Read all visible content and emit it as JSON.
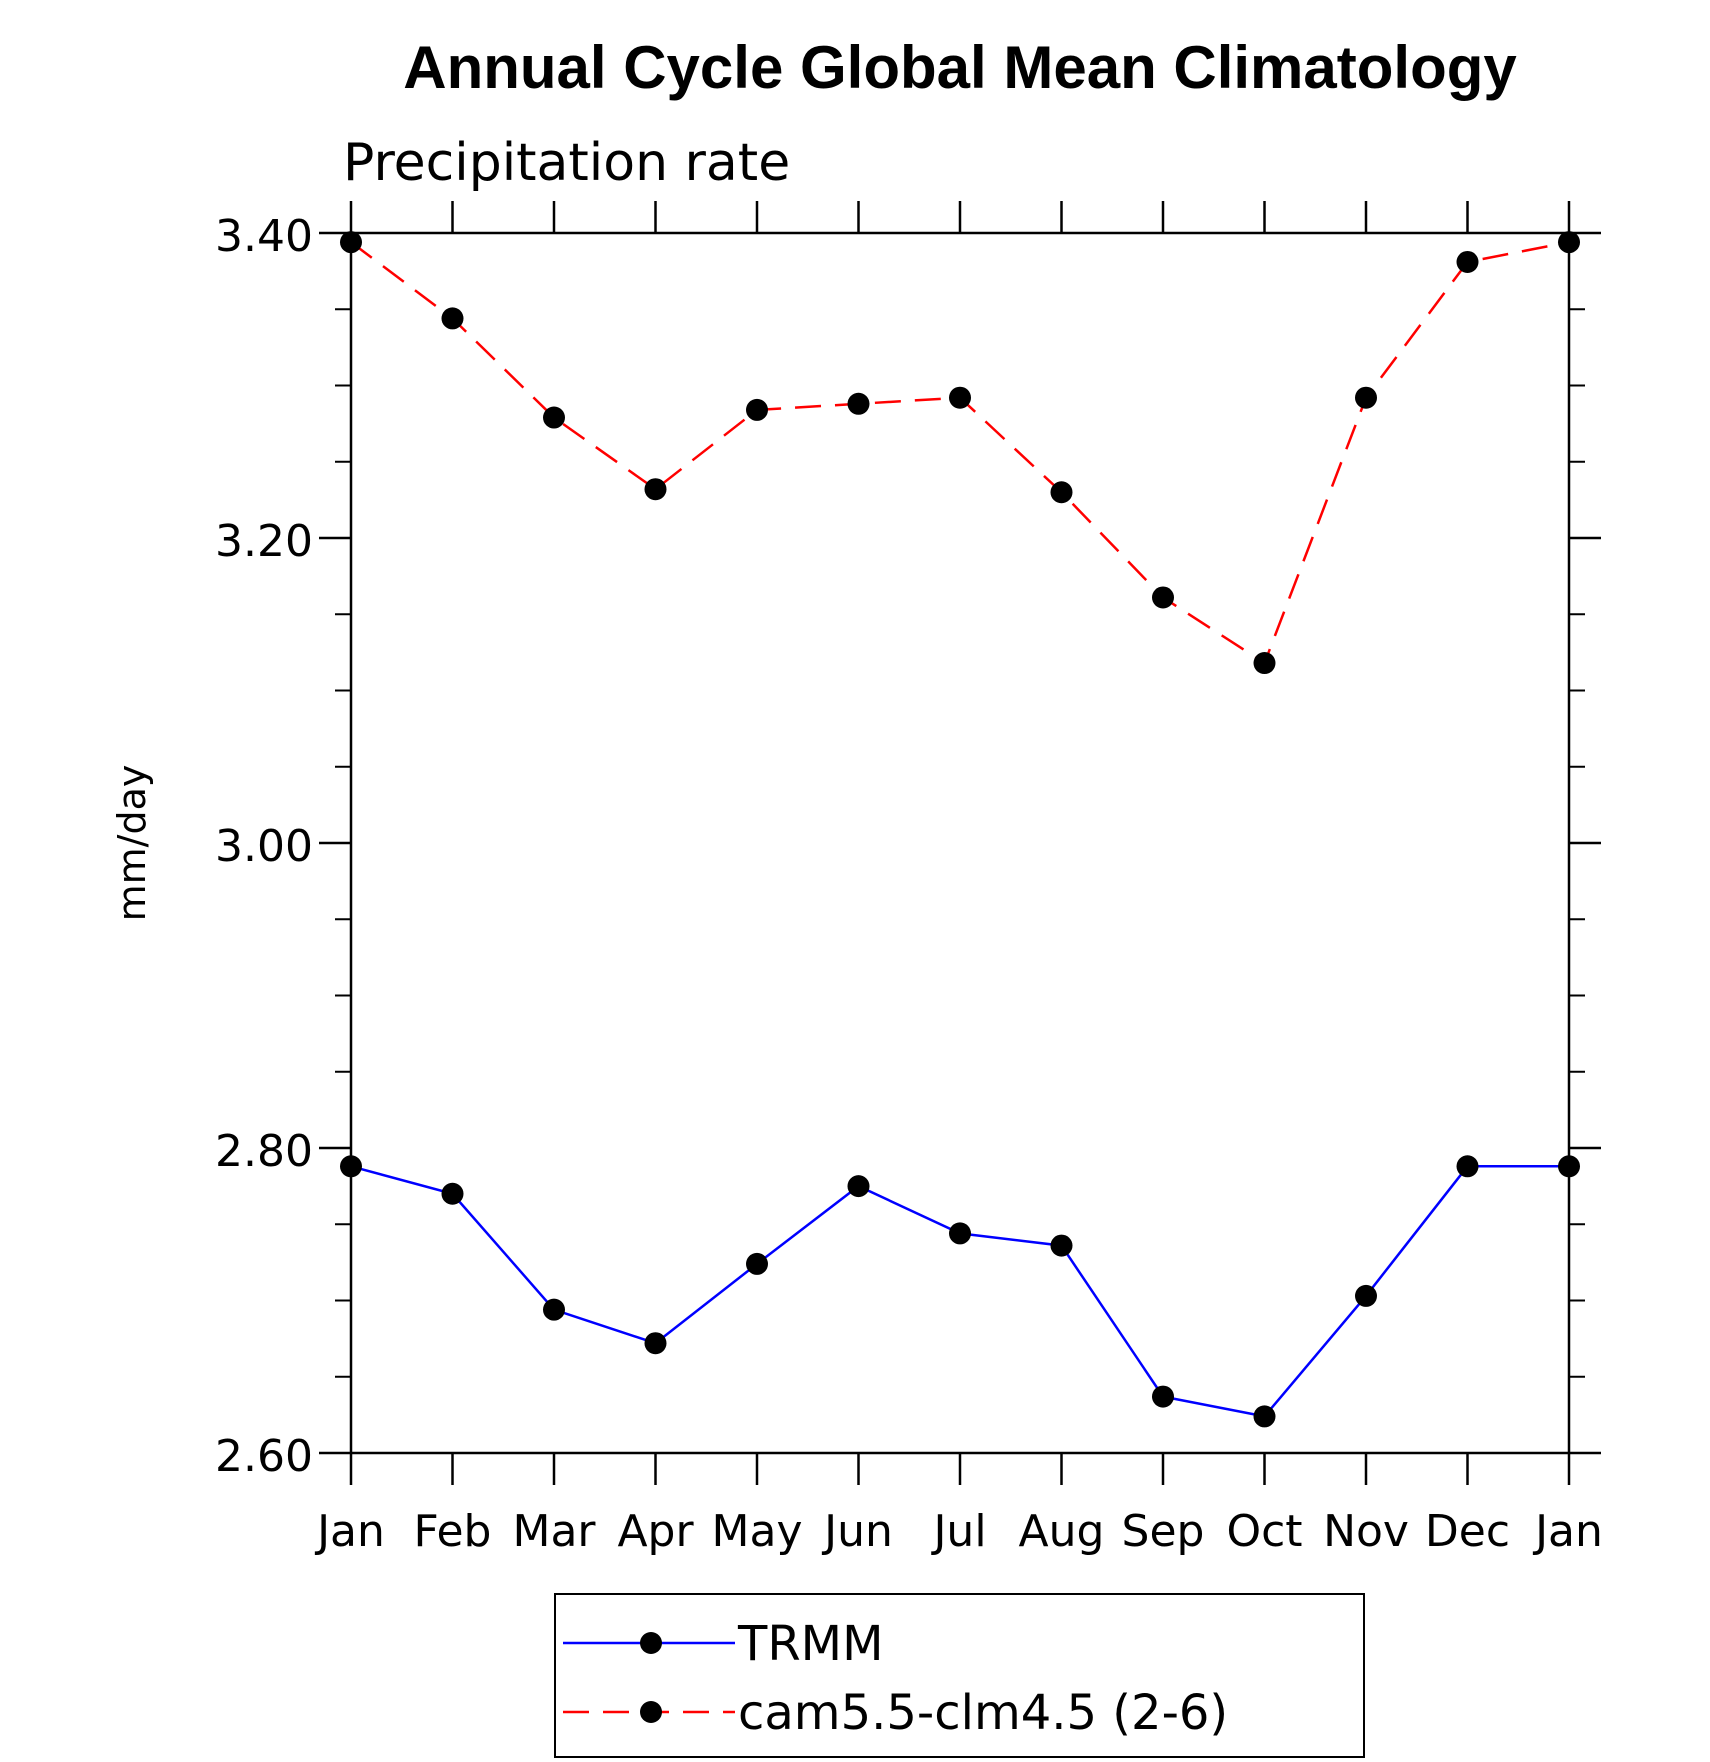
{
  "chart_data": {
    "type": "line",
    "title": "Annual Cycle Global Mean Climatology",
    "subtitle": "Precipitation rate",
    "xlabel": "",
    "ylabel": "mm/day",
    "categories": [
      "Jan",
      "Feb",
      "Mar",
      "Apr",
      "May",
      "Jun",
      "Jul",
      "Aug",
      "Sep",
      "Oct",
      "Nov",
      "Dec",
      "Jan"
    ],
    "ylim": [
      2.6,
      3.4
    ],
    "yticks": [
      "2.60",
      "2.80",
      "3.00",
      "3.20",
      "3.40"
    ],
    "y_minor_step": 0.05,
    "grid": false,
    "legend_position": "bottom",
    "series": [
      {
        "name": "TRMM",
        "color": "#0000ff",
        "style": "solid",
        "marker": "filled-circle",
        "values": [
          2.788,
          2.77,
          2.694,
          2.672,
          2.724,
          2.775,
          2.744,
          2.736,
          2.637,
          2.624,
          2.703,
          2.788,
          2.788
        ]
      },
      {
        "name": "cam5.5-clm4.5 (2-6)",
        "color": "#ff0000",
        "style": "dashed",
        "marker": "filled-circle",
        "values": [
          3.394,
          3.344,
          3.279,
          3.232,
          3.284,
          3.288,
          3.292,
          3.23,
          3.161,
          3.118,
          3.292,
          3.381,
          3.394
        ]
      }
    ]
  }
}
